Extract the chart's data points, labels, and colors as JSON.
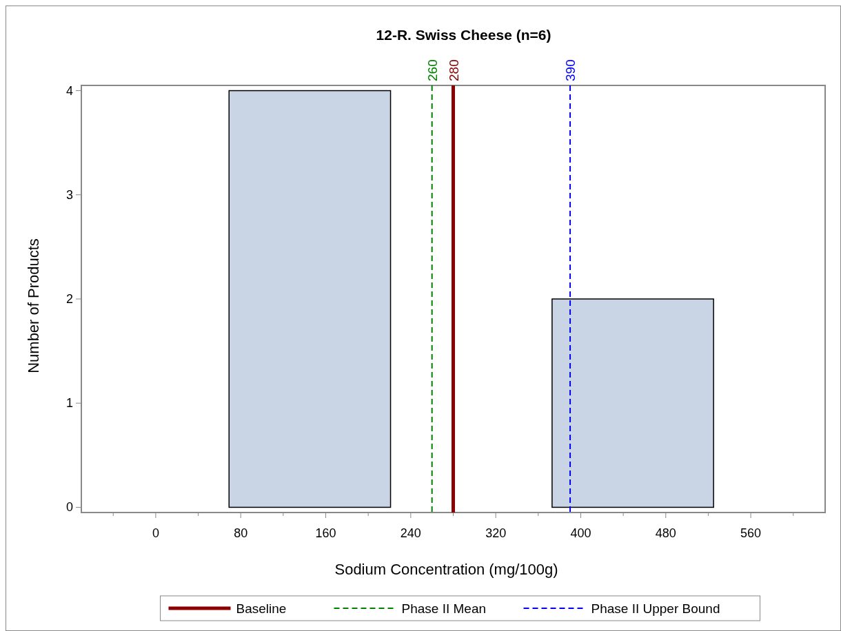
{
  "chart_data": {
    "type": "histogram",
    "title": "12-R. Swiss Cheese (n=6)",
    "xlabel": "Sodium Concentration (mg/100g)",
    "ylabel": "Number of Products",
    "bins": [
      69,
      221,
      373,
      525
    ],
    "values": [
      4,
      0,
      2
    ],
    "color": "#c9d5e4",
    "annotations": [
      "280",
      "260",
      "390"
    ],
    "xlim": [
      -70,
      630
    ],
    "ylim": [
      -0.05,
      4.05
    ],
    "xticks": [
      {
        "value": -40,
        "label": null
      },
      0,
      {
        "value": 40,
        "label": null
      },
      80,
      {
        "value": 120,
        "label": null
      },
      160,
      {
        "value": 200,
        "label": null
      },
      240,
      {
        "value": 280,
        "label": null
      },
      320,
      {
        "value": 360,
        "label": null
      },
      400,
      {
        "value": 440,
        "label": null
      },
      480,
      {
        "value": 520,
        "label": null
      },
      560,
      {
        "value": 600,
        "label": null
      }
    ],
    "yticks": [
      0,
      1,
      2,
      3,
      4
    ],
    "ref_lines": [
      {
        "axis": "x",
        "value": 280,
        "label": "Baseline",
        "color": "#8b0000",
        "line_style": "solid"
      },
      {
        "axis": "x",
        "value": 260,
        "label": "Phase II Mean",
        "color": "#008000",
        "line_style": "dashed"
      },
      {
        "axis": "x",
        "value": 390,
        "label": "Phase II Upper Bound",
        "color": "#0000ff",
        "line_style": "dashed"
      }
    ],
    "grid": false,
    "legend": "bottom"
  }
}
